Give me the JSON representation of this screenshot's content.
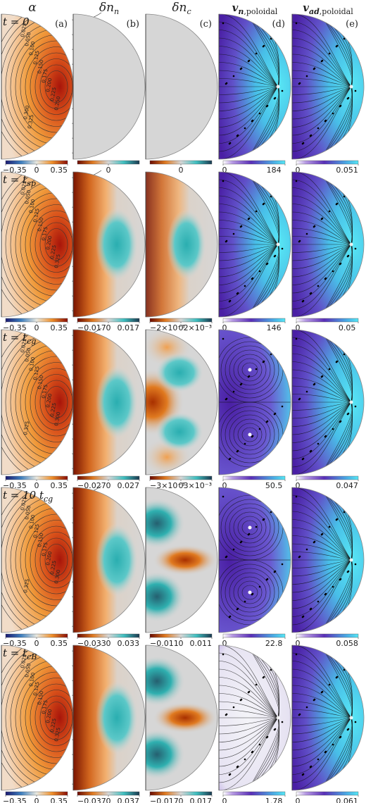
{
  "headers": [
    {
      "id": "alpha",
      "main": "α",
      "sub": ""
    },
    {
      "id": "dnn",
      "main": "δn",
      "sub": "n"
    },
    {
      "id": "dnc",
      "main": "δn",
      "sub": "c"
    },
    {
      "id": "vn",
      "main": "v",
      "sub2": "n",
      "sub": ",poloidal"
    },
    {
      "id": "vad",
      "main": "v",
      "sub2": "ad",
      "sub": ",poloidal"
    }
  ],
  "panel_labels": [
    "(a)",
    "(b)",
    "(c)",
    "(d)",
    "(e)"
  ],
  "rows": [
    {
      "time_label": "t = 0",
      "colorbars": {
        "alpha": [
          "−0.35",
          "0",
          "0.35"
        ],
        "dnn": [
          "0"
        ],
        "dnc": [
          "0"
        ],
        "vn": [
          "0",
          "184"
        ],
        "vad": [
          "0",
          "0.051"
        ]
      },
      "contour_labels": [
        "0.025",
        "0.050",
        "0.100",
        "0.125",
        "0.150",
        "0.175",
        "0.200",
        "0.225",
        "0.250",
        "0.300",
        "0.325"
      ],
      "dnn_pattern": "none",
      "dnc_pattern": "none",
      "vn_pattern": "monopole",
      "vad_pattern": "monopole"
    },
    {
      "time_label": "t = t_sp",
      "colorbars": {
        "alpha": [
          "−0.35",
          "0",
          "0.35"
        ],
        "dnn": [
          "−0.017",
          "0",
          "0.017"
        ],
        "dnc": [
          "−2×10⁻³",
          "0",
          "2×10⁻³"
        ],
        "vn": [
          "0",
          "146"
        ],
        "vad": [
          "0",
          "0.05"
        ]
      },
      "contour_labels": [
        "0.025",
        "0.050",
        "0.100",
        "0.125",
        "0.150",
        "0.175",
        "0.200",
        "0.225",
        "0.325"
      ],
      "dnn_pattern": "dipole",
      "dnc_pattern": "dipole",
      "vn_pattern": "monopole",
      "vad_pattern": "monopole"
    },
    {
      "time_label": "t = t_cg",
      "colorbars": {
        "alpha": [
          "−0.35",
          "0",
          "0.35"
        ],
        "dnn": [
          "−0.027",
          "0",
          "0.027"
        ],
        "dnc": [
          "−3×10⁻³",
          "0",
          "3×10⁻³"
        ],
        "vn": [
          "0",
          "50.5"
        ],
        "vad": [
          "0",
          "0.047"
        ]
      },
      "contour_labels": [
        "0.025",
        "0.050",
        "0.100",
        "0.125",
        "0.150",
        "0.175",
        "0.200",
        "0.225",
        "0.300",
        "0.325"
      ],
      "dnn_pattern": "dipole",
      "dnc_pattern": "core",
      "vn_pattern": "vortex",
      "vad_pattern": "monopole"
    },
    {
      "time_label": "t = 10 t_cg",
      "colorbars": {
        "alpha": [
          "−0.35",
          "0",
          "0.35"
        ],
        "dnn": [
          "−0.033",
          "0",
          "0.033"
        ],
        "dnc": [
          "−0.011",
          "0",
          "0.011"
        ],
        "vn": [
          "0",
          "22.8"
        ],
        "vad": [
          "0",
          "0.058"
        ]
      },
      "contour_labels": [
        "0.025",
        "0.050",
        "0.100",
        "0.125",
        "0.150",
        "0.175",
        "0.200",
        "0.225",
        "0.300",
        "0.325"
      ],
      "dnn_pattern": "dipole",
      "dnc_pattern": "quad",
      "vn_pattern": "vortex",
      "vad_pattern": "monopole"
    },
    {
      "time_label": "t = t_cB",
      "colorbars": {
        "alpha": [
          "−0.35",
          "0",
          "0.35"
        ],
        "dnn": [
          "−0.037",
          "0",
          "0.037"
        ],
        "dnc": [
          "−0.017",
          "0",
          "0.017"
        ],
        "vn": [
          "0",
          "1.78"
        ],
        "vad": [
          "0",
          "0.061"
        ]
      },
      "contour_labels": [
        "0.025",
        "0.050",
        "0.100",
        "0.125",
        "0.150",
        "0.175",
        "0.200",
        "0.225",
        "0.325"
      ],
      "dnn_pattern": "dipole",
      "dnc_pattern": "quad",
      "vn_pattern": "white",
      "vad_pattern": "monopole"
    }
  ],
  "colors": {
    "diverging_neg": "#7a0b00",
    "diverging_mid": "#d6d6d6",
    "diverging_pos": "#2fb5b5",
    "speed_low": "#4b1fa6",
    "speed_high": "#55e0f0",
    "alpha_high": "#b3190a",
    "alpha_mid": "#f0902a"
  }
}
